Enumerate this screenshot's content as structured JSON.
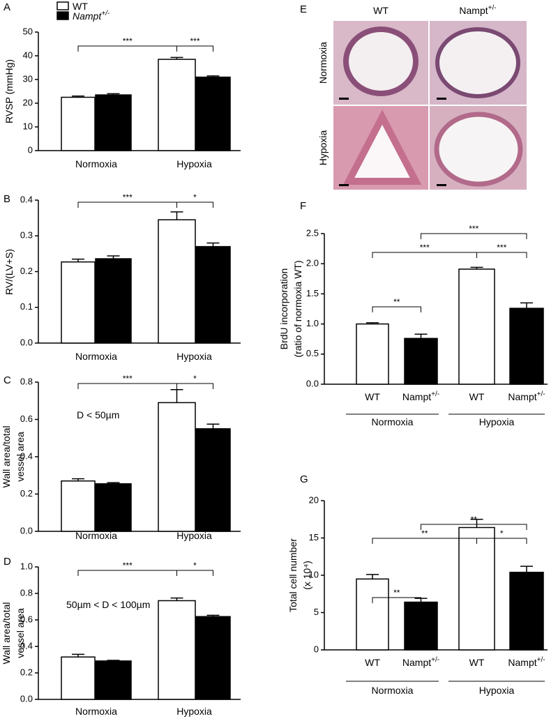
{
  "chart_data": [
    {
      "type": "bar",
      "panel": "A",
      "ylabel": [
        "RVSP (mmHg)"
      ],
      "categories": [
        "Normoxia",
        "Hypoxia"
      ],
      "series": [
        {
          "name": "WT",
          "color": "#ffffff",
          "values": [
            22.5,
            38.5
          ],
          "errors": [
            0.5,
            0.8
          ]
        },
        {
          "name": "Nampt",
          "superscript": "+/-",
          "color": "#000000",
          "values": [
            23.5,
            31
          ],
          "errors": [
            0.5,
            0.5
          ]
        }
      ],
      "ylim": [
        0,
        50
      ],
      "yticks": [
        0,
        10,
        20,
        30,
        40,
        50
      ],
      "annotations": [
        "***",
        "***"
      ]
    },
    {
      "type": "bar",
      "panel": "B",
      "ylabel": [
        "RV/(LV+S)"
      ],
      "categories": [
        "Normoxia",
        "Hypoxia"
      ],
      "series": [
        {
          "name": "WT",
          "color": "#ffffff",
          "values": [
            0.227,
            0.345
          ],
          "errors": [
            0.008,
            0.022
          ]
        },
        {
          "name": "Nampt",
          "superscript": "+/-",
          "color": "#000000",
          "values": [
            0.236,
            0.27
          ],
          "errors": [
            0.008,
            0.01
          ]
        }
      ],
      "ylim": [
        0,
        0.4
      ],
      "yticks": [
        {
          "value": 0,
          "label": "0.0"
        },
        0.1,
        0.2,
        0.3,
        0.4
      ],
      "annotations": [
        "***",
        "*"
      ]
    },
    {
      "type": "bar",
      "panel": "C",
      "ylabel": [
        "Wall area/total",
        "vessel area"
      ],
      "categories": [
        "Normoxia",
        "Hypoxia"
      ],
      "note": "D < 50µm",
      "series": [
        {
          "name": "WT",
          "color": "#ffffff",
          "values": [
            0.27,
            0.69
          ],
          "errors": [
            0.012,
            0.07
          ]
        },
        {
          "name": "Nampt",
          "superscript": "+/-",
          "color": "#000000",
          "values": [
            0.255,
            0.55
          ],
          "errors": [
            0.006,
            0.025
          ]
        }
      ],
      "ylim": [
        0,
        0.8
      ],
      "yticks": [
        {
          "value": 0,
          "label": "0.0"
        },
        0.2,
        0.4,
        0.6,
        0.8
      ],
      "annotations": [
        "***",
        "*"
      ]
    },
    {
      "type": "bar",
      "panel": "D",
      "ylabel": [
        "Wall area/total",
        "vessel area"
      ],
      "categories": [
        "Normoxia",
        "Hypoxia"
      ],
      "note": "50µm < D < 100µm",
      "series": [
        {
          "name": "WT",
          "color": "#ffffff",
          "values": [
            0.32,
            0.745
          ],
          "errors": [
            0.02,
            0.02
          ]
        },
        {
          "name": "Nampt",
          "superscript": "+/-",
          "color": "#000000",
          "values": [
            0.29,
            0.625
          ],
          "errors": [
            0.005,
            0.01
          ]
        }
      ],
      "ylim": [
        0,
        1
      ],
      "yticks": [
        {
          "value": 0,
          "label": "0.0"
        },
        0.2,
        0.4,
        0.6,
        0.8,
        {
          "value": 1,
          "label": "1.0"
        }
      ],
      "annotations": [
        "***",
        "*"
      ]
    },
    {
      "type": "groupbar",
      "panel": "F",
      "ylabel": [
        "BrdU incorporation",
        "(ratio of normoxia WT)"
      ],
      "categories": [
        "WT",
        "Nampt",
        "WT",
        "Nampt"
      ],
      "category_superscripts": [
        null,
        "+/-",
        null,
        "+/-"
      ],
      "groups": [
        "Normoxia",
        "Hypoxia"
      ],
      "values": [
        1.0,
        0.76,
        1.91,
        1.26
      ],
      "errors": [
        0.02,
        0.07,
        0.03,
        0.09
      ],
      "colors": [
        "#ffffff",
        "#000000",
        "#ffffff",
        "#000000"
      ],
      "ylim": [
        0,
        2.5
      ],
      "yticks": [
        {
          "value": 0,
          "label": "0.0"
        },
        0.5,
        {
          "value": 1,
          "label": "1.0"
        },
        1.5,
        {
          "value": 2,
          "label": "2.0"
        },
        2.5
      ],
      "annotations": [
        "***",
        "***",
        "***",
        "**"
      ]
    },
    {
      "type": "groupbar",
      "panel": "G",
      "ylabel": [
        "Total cell number",
        "(x 10⁴)"
      ],
      "categories": [
        "WT",
        "Nampt",
        "WT",
        "Nampt"
      ],
      "category_superscripts": [
        null,
        "+/-",
        null,
        "+/-"
      ],
      "groups": [
        "Normoxia",
        "Hypoxia"
      ],
      "values": [
        9.5,
        6.4,
        16.4,
        10.4
      ],
      "errors": [
        0.6,
        0.5,
        1.1,
        0.8
      ],
      "colors": [
        "#ffffff",
        "#000000",
        "#ffffff",
        "#000000"
      ],
      "ylim": [
        0,
        20
      ],
      "yticks": [
        0,
        5,
        10,
        15,
        20
      ],
      "annotations": [
        "**",
        "**",
        "*",
        "**"
      ]
    }
  ],
  "image_panel": {
    "panel": "E",
    "columns": [
      {
        "text": "WT"
      },
      {
        "text": "Nampt",
        "superscript": "+/-"
      }
    ],
    "rows": [
      "Normoxia",
      "Hypoxia"
    ]
  }
}
